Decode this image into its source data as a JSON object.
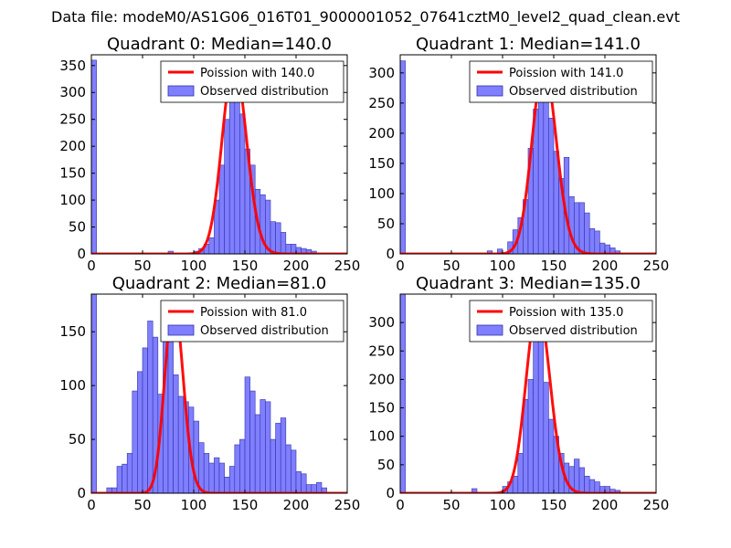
{
  "suptitle": "Data file: modeM0/AS1G06_016T01_9000001052_07641cztM0_level2_quad_clean.evt",
  "colors": {
    "bar_fill": "#7f7fff",
    "bar_edge": "#3333aa",
    "poisson": "#ff0000"
  },
  "chart_data": [
    {
      "type": "bar",
      "title": "Quadrant 0: Median=140.0",
      "xlim": [
        0,
        250
      ],
      "ylim": [
        0,
        370
      ],
      "xticks": [
        0,
        50,
        100,
        150,
        200,
        250
      ],
      "yticks": [
        0,
        50,
        100,
        150,
        200,
        250,
        300,
        350
      ],
      "bin_width": 5,
      "bins": [
        [
          75,
          5
        ],
        [
          100,
          5
        ],
        [
          105,
          10
        ],
        [
          110,
          18
        ],
        [
          115,
          30
        ],
        [
          120,
          100
        ],
        [
          125,
          165
        ],
        [
          130,
          250
        ],
        [
          135,
          355
        ],
        [
          140,
          295
        ],
        [
          145,
          260
        ],
        [
          150,
          195
        ],
        [
          155,
          165
        ],
        [
          160,
          120
        ],
        [
          165,
          110
        ],
        [
          170,
          100
        ],
        [
          175,
          60
        ],
        [
          180,
          58
        ],
        [
          185,
          40
        ],
        [
          190,
          18
        ],
        [
          195,
          18
        ],
        [
          200,
          12
        ],
        [
          205,
          10
        ],
        [
          210,
          8
        ],
        [
          215,
          5
        ]
      ],
      "edge_bin": [
        0,
        5,
        360
      ],
      "poisson_mean": 140.0,
      "poisson_peak": 355,
      "legend": [
        "Poission with 140.0",
        "Observed distribution"
      ]
    },
    {
      "type": "bar",
      "title": "Quadrant 1: Median=141.0",
      "xlim": [
        0,
        250
      ],
      "ylim": [
        0,
        330
      ],
      "xticks": [
        0,
        50,
        100,
        150,
        200,
        250
      ],
      "yticks": [
        0,
        50,
        100,
        150,
        200,
        250,
        300
      ],
      "bin_width": 5,
      "bins": [
        [
          85,
          5
        ],
        [
          95,
          8
        ],
        [
          105,
          20
        ],
        [
          110,
          40
        ],
        [
          115,
          60
        ],
        [
          120,
          90
        ],
        [
          125,
          175
        ],
        [
          130,
          240
        ],
        [
          135,
          310
        ],
        [
          140,
          290
        ],
        [
          145,
          225
        ],
        [
          150,
          170
        ],
        [
          155,
          125
        ],
        [
          160,
          160
        ],
        [
          165,
          95
        ],
        [
          170,
          85
        ],
        [
          175,
          85
        ],
        [
          180,
          68
        ],
        [
          185,
          42
        ],
        [
          190,
          38
        ],
        [
          195,
          18
        ],
        [
          200,
          15
        ],
        [
          205,
          10
        ],
        [
          210,
          5
        ]
      ],
      "edge_bin": [
        0,
        5,
        320
      ],
      "poisson_mean": 141.0,
      "poisson_peak": 310,
      "legend": [
        "Poission with 141.0",
        "Observed distribution"
      ]
    },
    {
      "type": "bar",
      "title": "Quadrant 2: Median=81.0",
      "xlim": [
        0,
        250
      ],
      "ylim": [
        0,
        185
      ],
      "xticks": [
        0,
        50,
        100,
        150,
        200,
        250
      ],
      "yticks": [
        0,
        50,
        100,
        150
      ],
      "bin_width": 5,
      "bins": [
        [
          15,
          5
        ],
        [
          20,
          5
        ],
        [
          25,
          25
        ],
        [
          30,
          27
        ],
        [
          35,
          37
        ],
        [
          40,
          95
        ],
        [
          45,
          113
        ],
        [
          50,
          135
        ],
        [
          55,
          160
        ],
        [
          60,
          145
        ],
        [
          65,
          92
        ],
        [
          70,
          145
        ],
        [
          75,
          145
        ],
        [
          80,
          110
        ],
        [
          85,
          90
        ],
        [
          90,
          85
        ],
        [
          95,
          80
        ],
        [
          100,
          67
        ],
        [
          105,
          47
        ],
        [
          110,
          37
        ],
        [
          115,
          28
        ],
        [
          120,
          33
        ],
        [
          125,
          28
        ],
        [
          130,
          15
        ],
        [
          135,
          25
        ],
        [
          140,
          45
        ],
        [
          145,
          50
        ],
        [
          150,
          108
        ],
        [
          155,
          95
        ],
        [
          160,
          73
        ],
        [
          165,
          87
        ],
        [
          170,
          85
        ],
        [
          175,
          50
        ],
        [
          180,
          65
        ],
        [
          185,
          70
        ],
        [
          190,
          45
        ],
        [
          195,
          40
        ],
        [
          200,
          20
        ],
        [
          205,
          18
        ],
        [
          210,
          8
        ],
        [
          215,
          8
        ],
        [
          220,
          10
        ],
        [
          225,
          5
        ]
      ],
      "edge_bin": [
        0,
        5,
        185
      ],
      "poisson_mean": 81.0,
      "poisson_peak": 178,
      "legend": [
        "Poission with 81.0",
        "Observed distribution"
      ]
    },
    {
      "type": "bar",
      "title": "Quadrant 3: Median=135.0",
      "xlim": [
        0,
        250
      ],
      "ylim": [
        0,
        350
      ],
      "xticks": [
        0,
        50,
        100,
        150,
        200,
        250
      ],
      "yticks": [
        0,
        50,
        100,
        150,
        200,
        250,
        300
      ],
      "bin_width": 5,
      "bins": [
        [
          70,
          8
        ],
        [
          100,
          12
        ],
        [
          105,
          20
        ],
        [
          110,
          30
        ],
        [
          115,
          70
        ],
        [
          120,
          165
        ],
        [
          125,
          200
        ],
        [
          130,
          325
        ],
        [
          135,
          320
        ],
        [
          140,
          195
        ],
        [
          145,
          130
        ],
        [
          150,
          100
        ],
        [
          155,
          70
        ],
        [
          160,
          53
        ],
        [
          165,
          47
        ],
        [
          170,
          60
        ],
        [
          175,
          45
        ],
        [
          180,
          30
        ],
        [
          185,
          24
        ],
        [
          190,
          20
        ],
        [
          195,
          12
        ],
        [
          200,
          12
        ],
        [
          205,
          7
        ],
        [
          210,
          5
        ]
      ],
      "edge_bin": [
        0,
        5,
        350
      ],
      "poisson_mean": 135.0,
      "poisson_peak": 330,
      "legend": [
        "Poission with 135.0",
        "Observed distribution"
      ]
    }
  ]
}
